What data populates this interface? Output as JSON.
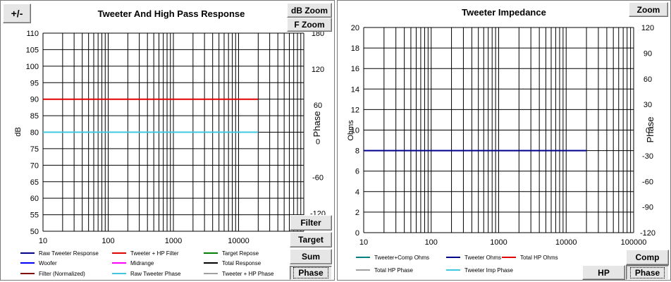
{
  "left_panel": {
    "title": "Tweeter  And High Pass Response",
    "buttons": {
      "plus_minus": "+/-",
      "db_zoom": "dB Zoom",
      "f_zoom": "F Zoom",
      "filter": "Filter",
      "target": "Target",
      "sum": "Sum",
      "phase": "Phase"
    },
    "legend": [
      {
        "label": "Raw Tweeter Response",
        "color": "#00008b"
      },
      {
        "label": "Tweeter + HP Filter",
        "color": "#e00000"
      },
      {
        "label": "Target Repose",
        "color": "#008000"
      },
      {
        "label": "Woofer",
        "color": "#0000ff"
      },
      {
        "label": "Midrange",
        "color": "#ff00ff"
      },
      {
        "label": "Total Response",
        "color": "#000000"
      },
      {
        "label": "Filter (Normalized)",
        "color": "#800000"
      },
      {
        "label": "Raw Tweeter Phase",
        "color": "#40c8e0"
      },
      {
        "label": "Tweeter + HP Phase",
        "color": "#a0a0a0"
      }
    ]
  },
  "right_panel": {
    "title": "Tweeter  Impedance",
    "buttons": {
      "zoom": "Zoom",
      "comp": "Comp",
      "hp": "HP",
      "phase": "Phase"
    },
    "legend": [
      {
        "label": "Tweeter+Comp Ohms",
        "color": "#008080"
      },
      {
        "label": "Tweeter Ohms",
        "color": "#00008b"
      },
      {
        "label": "Total HP Ohms",
        "color": "#e00000"
      },
      {
        "label": "Total HP Phase",
        "color": "#a0a0a0"
      },
      {
        "label": "Tweeter Imp Phase",
        "color": "#40c8e0"
      }
    ]
  },
  "chart_data": [
    {
      "type": "line",
      "title": "Tweeter  And High Pass Response",
      "xscale": "log",
      "xlim": [
        10,
        100000
      ],
      "x_ticks": [
        "10",
        "100",
        "1000",
        "10000"
      ],
      "ylabel": "dB",
      "ylim": [
        50,
        110
      ],
      "y_ticks": [
        "50",
        "55",
        "60",
        "65",
        "70",
        "75",
        "80",
        "85",
        "90",
        "95",
        "100",
        "105",
        "110"
      ],
      "y2label": "Phase",
      "y2lim": [
        -150,
        180
      ],
      "y2_ticks": [
        "-120",
        "-60",
        "0",
        "60",
        "120",
        "180"
      ],
      "grid": true,
      "legend_position": "bottom",
      "series": [
        {
          "name": "Tweeter + HP Filter",
          "color": "#e00000",
          "axis": "y",
          "x": [
            10,
            20000
          ],
          "y": [
            90,
            90
          ]
        },
        {
          "name": "Raw Tweeter Phase",
          "color": "#40c8e0",
          "axis": "y",
          "x": [
            10,
            20000
          ],
          "y": [
            80,
            80
          ]
        }
      ]
    },
    {
      "type": "line",
      "title": "Tweeter  Impedance",
      "xscale": "log",
      "xlim": [
        10,
        100000
      ],
      "x_ticks": [
        "10",
        "100",
        "1000",
        "10000",
        "100000"
      ],
      "ylabel": "Ohms",
      "ylim": [
        0,
        20
      ],
      "y_ticks": [
        "0",
        "2",
        "4",
        "6",
        "8",
        "10",
        "12",
        "14",
        "16",
        "18",
        "20"
      ],
      "y2label": "Phase",
      "y2lim": [
        -120,
        120
      ],
      "y2_ticks": [
        "-120",
        "-90",
        "-60",
        "-30",
        "0",
        "30",
        "60",
        "90",
        "120"
      ],
      "grid": true,
      "legend_position": "bottom",
      "series": [
        {
          "name": "Tweeter Ohms",
          "color": "#00008b",
          "axis": "y",
          "x": [
            10,
            20000
          ],
          "y": [
            8,
            8
          ]
        }
      ]
    }
  ]
}
